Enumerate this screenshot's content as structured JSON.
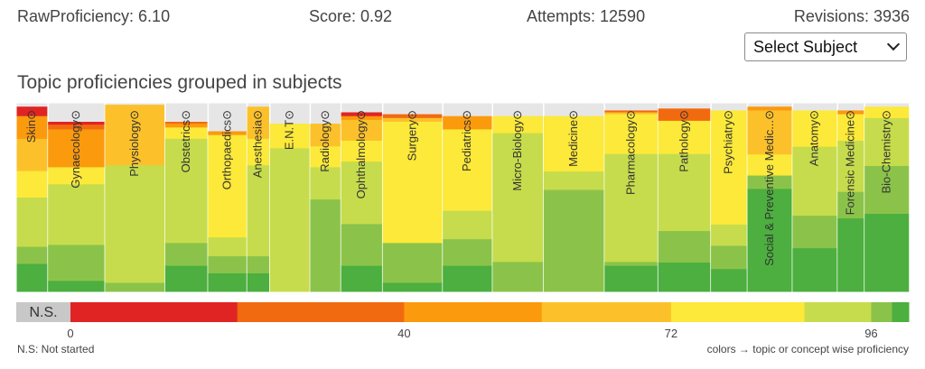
{
  "stats": {
    "raw_proficiency": "RawProficiency: 6.10",
    "score": "Score: 0.92",
    "attempts": "Attempts: 12590",
    "revisions": "Revisions: 3936"
  },
  "subject_select": {
    "value": "Select Subject"
  },
  "section_title": "Topic proficiencies grouped in subjects",
  "colors": {
    "not_started": "#c8c8c8",
    "red": "#e02424",
    "deep_orange": "#f26a10",
    "orange": "#fb9a0d",
    "amber": "#fcc12a",
    "yellow": "#fce939",
    "yellow_green": "#c6dc4c",
    "light_green": "#8bc34a",
    "green": "#4caf3f",
    "background_gray": "#e6e6e6"
  },
  "chart_data": {
    "type": "treemap",
    "title": "Topic proficiencies grouped in subjects",
    "subjects": [
      {
        "name": "Skin",
        "symbol": "⊙",
        "weight": 0.074,
        "top_gray": 0.02,
        "segments": [
          [
            "red",
            0.05
          ],
          [
            "orange",
            0.12
          ],
          [
            "amber",
            0.17
          ],
          [
            "yellow",
            0.14
          ],
          [
            "yellow_green",
            0.26
          ],
          [
            "light_green",
            0.09
          ],
          [
            "green",
            0.15
          ]
        ]
      },
      {
        "name": "Gynaecology",
        "symbol": "⊙",
        "weight": 0.133,
        "top_gray": 0.1,
        "segments": [
          [
            "red",
            0.015
          ],
          [
            "deep_orange",
            0.025
          ],
          [
            "orange",
            0.2
          ],
          [
            "yellow",
            0.09
          ],
          [
            "yellow_green",
            0.32
          ],
          [
            "light_green",
            0.19
          ],
          [
            "green",
            0.06
          ]
        ]
      },
      {
        "name": "Physiology",
        "symbol": "⊙",
        "weight": 0.14,
        "top_gray": 0.01,
        "segments": [
          [
            "amber",
            0.32
          ],
          [
            "yellow_green",
            0.62
          ],
          [
            "light_green",
            0.05
          ]
        ]
      },
      {
        "name": "Obstetrics",
        "symbol": "⊙",
        "weight": 0.1,
        "top_gray": 0.1,
        "segments": [
          [
            "deep_orange",
            0.01
          ],
          [
            "orange",
            0.02
          ],
          [
            "yellow",
            0.06
          ],
          [
            "yellow_green",
            0.55
          ],
          [
            "light_green",
            0.12
          ],
          [
            "green",
            0.14
          ]
        ]
      },
      {
        "name": "Orthopaedics",
        "symbol": "⊙",
        "weight": 0.091,
        "top_gray": 0.15,
        "segments": [
          [
            "orange",
            0.02
          ],
          [
            "yellow",
            0.54
          ],
          [
            "yellow_green",
            0.1
          ],
          [
            "light_green",
            0.09
          ],
          [
            "green",
            0.1
          ]
        ]
      },
      {
        "name": "Anesthesia",
        "symbol": "⊙",
        "weight": 0.053,
        "top_gray": 0.02,
        "segments": [
          [
            "amber",
            0.17
          ],
          [
            "yellow",
            0.14
          ],
          [
            "yellow_green",
            0.48
          ],
          [
            "light_green",
            0.09
          ],
          [
            "green",
            0.1
          ]
        ]
      },
      {
        "name": "E.N.T",
        "symbol": "⊙",
        "weight": 0.094,
        "top_gray": 0.11,
        "segments": [
          [
            "yellow",
            0.13
          ],
          [
            "yellow_green",
            0.76
          ]
        ]
      },
      {
        "name": "Radiology",
        "symbol": "⊙",
        "weight": 0.072,
        "top_gray": 0.11,
        "segments": [
          [
            "amber",
            0.12
          ],
          [
            "yellow",
            0.11
          ],
          [
            "yellow_green",
            0.17
          ],
          [
            "light_green",
            0.49
          ]
        ]
      },
      {
        "name": "Ophthalmology",
        "symbol": "⊙",
        "weight": 0.097,
        "top_gray": 0.05,
        "segments": [
          [
            "red",
            0.02
          ],
          [
            "orange",
            0.02
          ],
          [
            "amber",
            0.11
          ],
          [
            "yellow",
            0.11
          ],
          [
            "yellow_green",
            0.33
          ],
          [
            "light_green",
            0.22
          ],
          [
            "green",
            0.14
          ]
        ]
      },
      {
        "name": "Surgery",
        "symbol": "⊙",
        "weight": 0.14,
        "top_gray": 0.06,
        "segments": [
          [
            "deep_orange",
            0.02
          ],
          [
            "amber",
            0.02
          ],
          [
            "yellow",
            0.64
          ],
          [
            "light_green",
            0.21
          ],
          [
            "green",
            0.05
          ]
        ]
      },
      {
        "name": "Pediatrics",
        "symbol": "⊙",
        "weight": 0.116,
        "top_gray": 0.07,
        "segments": [
          [
            "orange",
            0.07
          ],
          [
            "yellow",
            0.43
          ],
          [
            "yellow_green",
            0.15
          ],
          [
            "light_green",
            0.14
          ],
          [
            "green",
            0.14
          ]
        ]
      },
      {
        "name": "Micro-Biology",
        "symbol": "⊙",
        "weight": 0.119,
        "top_gray": 0.07,
        "segments": [
          [
            "yellow",
            0.09
          ],
          [
            "yellow_green",
            0.68
          ],
          [
            "light_green",
            0.16
          ]
        ]
      },
      {
        "name": "Medicine",
        "symbol": "⊙",
        "weight": 0.142,
        "top_gray": 0.07,
        "segments": [
          [
            "yellow",
            0.33
          ],
          [
            "yellow_green",
            0.11
          ],
          [
            "light_green",
            0.61
          ]
        ]
      },
      {
        "name": "Pharmacology",
        "symbol": "⊙",
        "weight": 0.125,
        "top_gray": 0.04,
        "segments": [
          [
            "deep_orange",
            0.01
          ],
          [
            "amber",
            0.01
          ],
          [
            "yellow",
            0.21
          ],
          [
            "yellow_green",
            0.57
          ],
          [
            "light_green",
            0.02
          ],
          [
            "green",
            0.14
          ]
        ]
      },
      {
        "name": "Pathology",
        "symbol": "⊙",
        "weight": 0.123,
        "top_gray": 0.03,
        "segments": [
          [
            "deep_orange",
            0.07
          ],
          [
            "yellow",
            0.19
          ],
          [
            "yellow_green",
            0.44
          ],
          [
            "light_green",
            0.18
          ],
          [
            "green",
            0.17
          ]
        ]
      },
      {
        "name": "Psychiatry",
        "symbol": "⊙",
        "weight": 0.085,
        "top_gray": 0.04,
        "segments": [
          [
            "yellow",
            0.59
          ],
          [
            "yellow_green",
            0.11
          ],
          [
            "light_green",
            0.12
          ],
          [
            "green",
            0.12
          ]
        ]
      },
      {
        "name": "Social & Preventive Medic...",
        "symbol": "⊙",
        "weight": 0.105,
        "top_gray": 0.02,
        "segments": [
          [
            "orange",
            0.02
          ],
          [
            "amber",
            0.23
          ],
          [
            "yellow",
            0.11
          ],
          [
            "light_green",
            0.07
          ],
          [
            "green",
            0.54
          ]
        ]
      },
      {
        "name": "Anatomy",
        "symbol": "⊙",
        "weight": 0.105,
        "top_gray": 0.04,
        "segments": [
          [
            "yellow",
            0.19
          ],
          [
            "yellow_green",
            0.36
          ],
          [
            "light_green",
            0.17
          ],
          [
            "green",
            0.23
          ]
        ]
      },
      {
        "name": "Forensic Medicine",
        "symbol": "⊙",
        "weight": 0.063,
        "top_gray": 0.04,
        "segments": [
          [
            "orange",
            0.02
          ],
          [
            "yellow",
            0.14
          ],
          [
            "yellow_green",
            0.27
          ],
          [
            "light_green",
            0.14
          ],
          [
            "green",
            0.39
          ]
        ]
      },
      {
        "name": "Bio-Chemistry",
        "symbol": "⊙",
        "weight": 0.105,
        "top_gray": 0.02,
        "segments": [
          [
            "yellow",
            0.06
          ],
          [
            "yellow_green",
            0.25
          ],
          [
            "light_green",
            0.25
          ],
          [
            "green",
            0.41
          ]
        ]
      }
    ],
    "legend": {
      "label": "N.S.",
      "bands": [
        [
          "not_started",
          -6.5,
          0
        ],
        [
          "red",
          0,
          20
        ],
        [
          "deep_orange",
          20,
          40
        ],
        [
          "orange",
          40,
          56.5
        ],
        [
          "amber",
          56.5,
          72
        ],
        [
          "yellow",
          72,
          88
        ],
        [
          "yellow_green",
          88,
          96
        ],
        [
          "light_green",
          96,
          98.5
        ],
        [
          "green",
          98.5,
          100.5
        ]
      ],
      "ticks": [
        0,
        40,
        72,
        96
      ],
      "domain": [
        -6.5,
        100.5
      ]
    }
  },
  "footer": {
    "not_started_note": "N.S: Not started",
    "colors_note": "colors → topic or concept wise proficiency"
  }
}
